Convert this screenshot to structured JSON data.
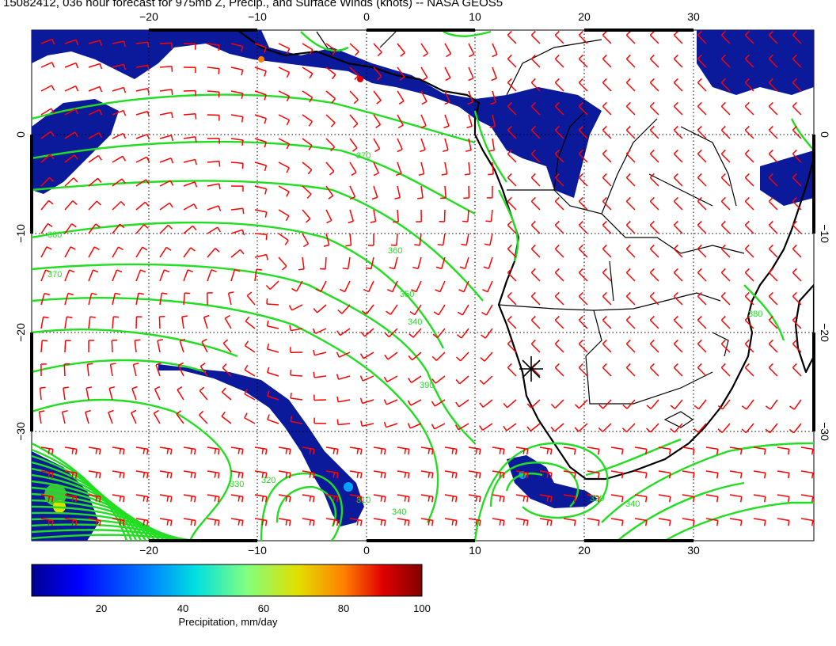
{
  "title": "15082412, 036 hour forecast for 975mb Z, Precip., and Surface Winds (knots) -- NASA GEOS5",
  "map": {
    "lon_labels": [
      "−20",
      "−10",
      "0",
      "10",
      "20",
      "30"
    ],
    "lat_labels": [
      "0",
      "−10",
      "−20",
      "−30"
    ],
    "contour_labels": [
      "370",
      "360",
      "350",
      "340",
      "390",
      "380",
      "370",
      "330",
      "320",
      "310",
      "340",
      "320",
      "340",
      "380"
    ],
    "colors": {
      "contour": "#22dd22",
      "wind_barb": "#ff0000",
      "precip": "#0a1a9a",
      "coast": "#000000"
    },
    "marker_symbol": "asterisk"
  },
  "colorbar": {
    "label": "Precipitation, mm/day",
    "ticks": [
      "20",
      "40",
      "60",
      "80",
      "100"
    ],
    "colors": [
      "#00008f",
      "#0000ff",
      "#0080ff",
      "#00e0e0",
      "#80ff80",
      "#e0e000",
      "#ff8000",
      "#e00000",
      "#800000"
    ]
  }
}
